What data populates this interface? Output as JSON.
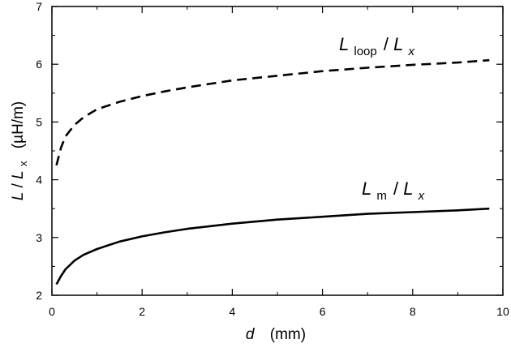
{
  "chart_data": {
    "type": "line",
    "xlabel": {
      "var": "d",
      "unit": "(mm)"
    },
    "ylabel": {
      "main": "L",
      "slash": "/",
      "sub_var": "L",
      "sub": "x",
      "unit": "(µH/m)"
    },
    "xlim": [
      0,
      10
    ],
    "ylim": [
      2,
      7
    ],
    "xticks": [
      "0",
      "2",
      "4",
      "6",
      "8",
      "10"
    ],
    "yticks": [
      "2",
      "3",
      "4",
      "5",
      "6",
      "7"
    ],
    "grid": false,
    "series": [
      {
        "name": "loop",
        "style": "dashed",
        "label": {
          "main": "L",
          "sub": "loop",
          "slash": "/",
          "den": "L",
          "den_sub": "x"
        },
        "x": [
          0.1,
          0.2,
          0.3,
          0.5,
          0.7,
          1.0,
          1.5,
          2.0,
          2.5,
          3.0,
          4.0,
          5.0,
          6.0,
          7.0,
          8.0,
          9.0,
          9.7
        ],
        "y": [
          4.25,
          4.55,
          4.75,
          4.95,
          5.08,
          5.22,
          5.35,
          5.45,
          5.53,
          5.6,
          5.72,
          5.8,
          5.88,
          5.94,
          5.99,
          6.03,
          6.07
        ]
      },
      {
        "name": "m",
        "style": "solid",
        "label": {
          "main": "L",
          "sub": "m",
          "slash": "/",
          "den": "L",
          "den_sub": "x"
        },
        "x": [
          0.1,
          0.2,
          0.3,
          0.5,
          0.7,
          1.0,
          1.5,
          2.0,
          2.5,
          3.0,
          4.0,
          5.0,
          6.0,
          7.0,
          8.0,
          9.0,
          9.7
        ],
        "y": [
          2.19,
          2.33,
          2.45,
          2.6,
          2.7,
          2.8,
          2.93,
          3.02,
          3.09,
          3.15,
          3.24,
          3.31,
          3.36,
          3.41,
          3.44,
          3.47,
          3.5
        ]
      }
    ]
  }
}
